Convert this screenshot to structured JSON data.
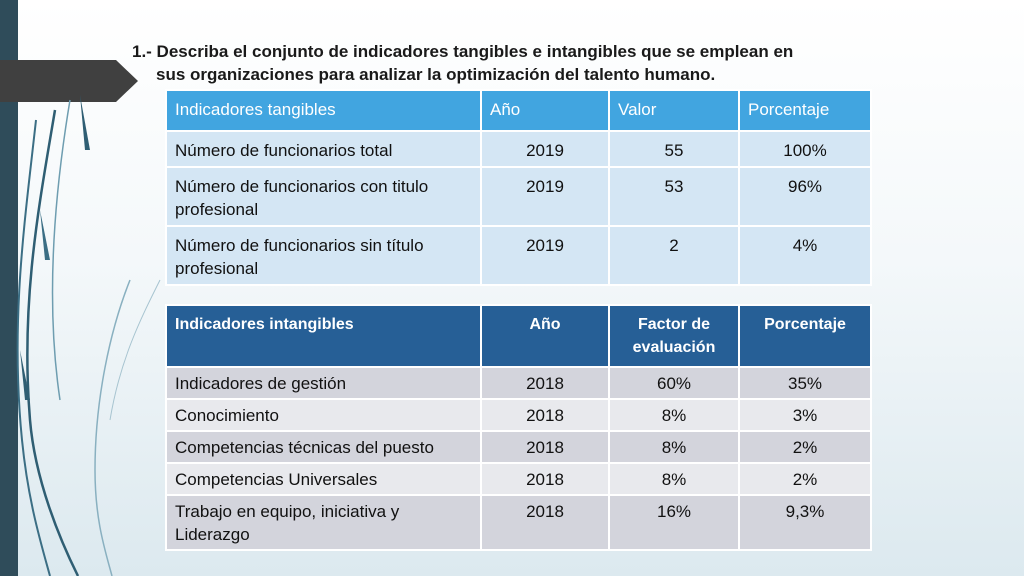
{
  "title": {
    "line1": "1.- Describa el conjunto de indicadores tangibles e intangibles que se emplean en",
    "line2": "sus organizaciones para analizar la optimización del talento humano."
  },
  "tangibles": {
    "headers": [
      "Indicadores tangibles",
      "Año",
      "Valor",
      "Porcentaje"
    ],
    "rows": [
      [
        "Número de funcionarios total",
        "2019",
        "55",
        "100%"
      ],
      [
        "Número de funcionarios con titulo profesional",
        "2019",
        "53",
        "96%"
      ],
      [
        "Número de funcionarios sin título profesional",
        "2019",
        "2",
        "4%"
      ]
    ]
  },
  "intangibles": {
    "headers": [
      "Indicadores intangibles",
      "Año",
      "Factor de evaluación",
      "Porcentaje"
    ],
    "rows": [
      [
        "Indicadores de gestión",
        "2018",
        "60%",
        "35%"
      ],
      [
        "Conocimiento",
        "2018",
        "8%",
        "3%"
      ],
      [
        "Competencias técnicas del puesto",
        "2018",
        "8%",
        "2%"
      ],
      [
        "Competencias Universales",
        "2018",
        "8%",
        "2%"
      ],
      [
        "Trabajo en equipo, iniciativa y Liderazgo",
        "2018",
        "16%",
        "9,3%"
      ]
    ]
  }
}
